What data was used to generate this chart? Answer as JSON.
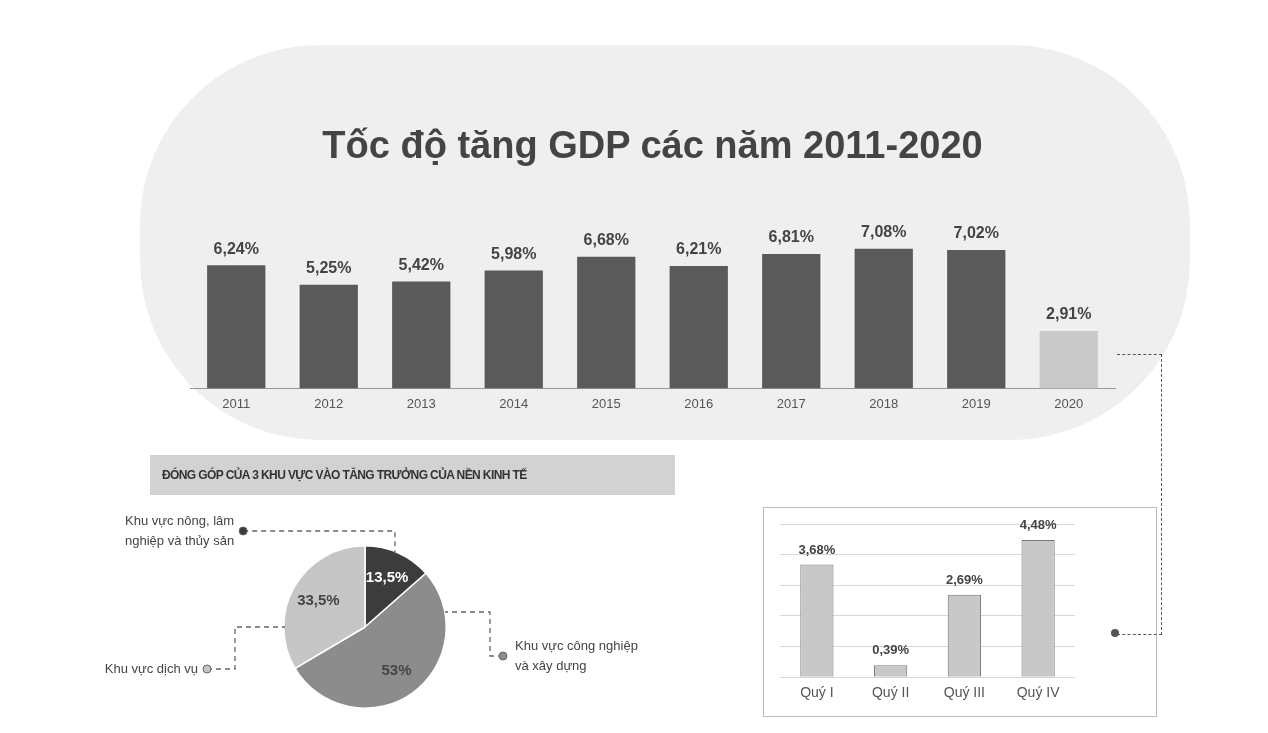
{
  "chart_data": [
    {
      "type": "bar",
      "title": "Tốc độ tăng GDP các năm 2011-2020",
      "categories": [
        "2011",
        "2012",
        "2013",
        "2014",
        "2015",
        "2016",
        "2017",
        "2018",
        "2019",
        "2020"
      ],
      "values": [
        6.24,
        5.25,
        5.42,
        5.98,
        6.68,
        6.21,
        6.81,
        7.08,
        7.02,
        2.91
      ],
      "colors": [
        "#5a5a5a",
        "#5a5a5a",
        "#5a5a5a",
        "#5a5a5a",
        "#5a5a5a",
        "#5a5a5a",
        "#5a5a5a",
        "#5a5a5a",
        "#5a5a5a",
        "#c9c9c9"
      ],
      "value_labels": [
        "6,24%",
        "5,25%",
        "5,42%",
        "5,98%",
        "6,68%",
        "6,21%",
        "6,81%",
        "7,08%",
        "7,02%",
        "2,91%"
      ],
      "tick_labels": "x"
    },
    {
      "type": "pie",
      "title": "ĐÓNG GÓP CỦA 3 KHU VỰC VÀO TĂNG TRƯỞNG CỦA NỀN KINH TẾ",
      "categories": [
        "Khu vực nông, lâm nghiệp và thủy sản",
        "Khu vực công nghiệp và xây dựng",
        "Khu vực dịch vụ"
      ],
      "values": [
        13.5,
        53,
        33.5
      ],
      "colors": [
        "#3c3c3c",
        "#8c8c8c",
        "#c6c6c6"
      ],
      "value_labels": [
        "13,5%",
        "53%",
        "33,5%"
      ],
      "legend": "left"
    },
    {
      "type": "bar",
      "categories": [
        "Quý I",
        "Quý II",
        "Quý III",
        "Quý IV"
      ],
      "values": [
        3.68,
        0.39,
        2.69,
        4.48
      ],
      "color": "#c8c8c8",
      "value_labels": [
        "3,68%",
        "0,39%",
        "2,69%",
        "4,48%"
      ],
      "ylim": [
        0,
        5
      ],
      "yticks": [
        {
          "value": 0,
          "label": null
        },
        {
          "value": 1,
          "label": null
        },
        {
          "value": 2,
          "label": null
        },
        {
          "value": 3,
          "label": null
        },
        {
          "value": 4,
          "label": null
        },
        {
          "value": 5,
          "label": null
        }
      ],
      "grid": "y",
      "tick_labels": "x"
    }
  ]
}
